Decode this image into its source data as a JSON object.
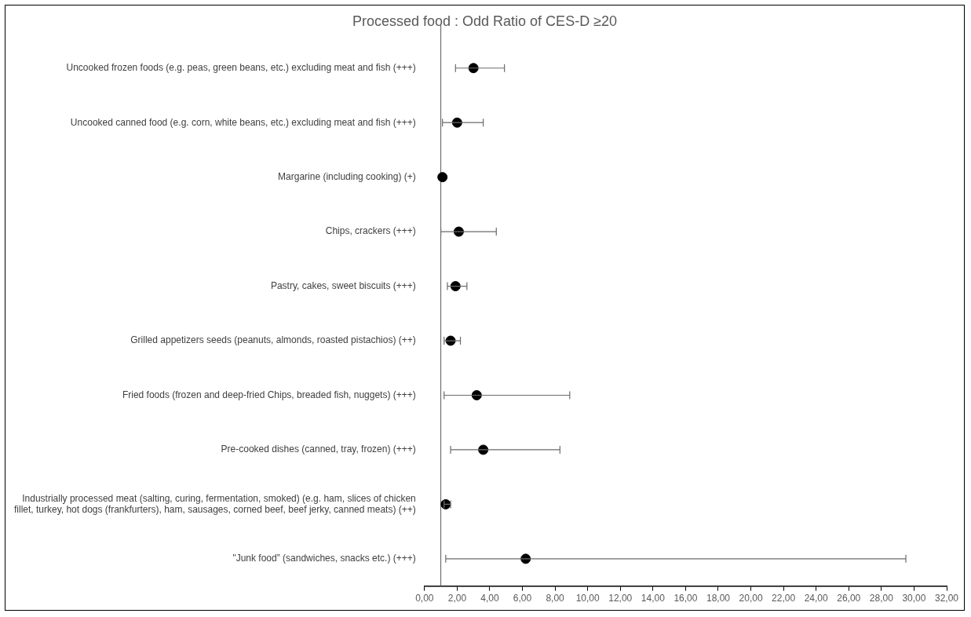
{
  "chart_data": {
    "type": "scatter",
    "orientation": "horizontal",
    "title": "Processed food : Odd Ratio of CES-D ≥20",
    "categories": [
      "Uncooked frozen foods (e.g. peas, green beans, etc.) excluding meat and fish (+++)",
      "Uncooked canned food (e.g. corn, white beans, etc.) excluding meat and fish (+++)",
      "Margarine (including cooking) (+)",
      "Chips, crackers (+++)",
      "Pastry, cakes, sweet biscuits (+++)",
      "Grilled appetizers seeds (peanuts, almonds, roasted pistachios) (++)",
      "Fried foods (frozen and deep-fried Chips, breaded fish, nuggets) (+++)",
      "Pre-cooked dishes (canned, tray, frozen) (+++)",
      "Industrially processed meat (salting, curing, fermentation, smoked) (e.g. ham, slices of chicken fillet, turkey, hot dogs (frankfurters), ham, sausages, corned beef, beef jerky, canned meats) (++)",
      "\"Junk food” (sandwiches, snacks etc.) (+++)"
    ],
    "values": [
      3.0,
      2.0,
      1.1,
      2.1,
      1.9,
      1.6,
      3.2,
      3.6,
      1.3,
      6.2
    ],
    "errors": [
      [
        1.9,
        4.9
      ],
      [
        1.1,
        3.6
      ],
      null,
      [
        1.0,
        4.4
      ],
      [
        1.4,
        2.6
      ],
      [
        1.2,
        2.2
      ],
      [
        1.2,
        8.9
      ],
      [
        1.6,
        8.3
      ],
      [
        1.2,
        1.6
      ],
      [
        1.3,
        29.5
      ]
    ],
    "color": "#000000",
    "marker": "circle",
    "xlim": [
      0,
      32
    ],
    "xticks": [
      {
        "value": 0,
        "label": "0,00"
      },
      {
        "value": 2,
        "label": "2,00"
      },
      {
        "value": 4,
        "label": "4,00"
      },
      {
        "value": 6,
        "label": "6,00"
      },
      {
        "value": 8,
        "label": "8,00"
      },
      {
        "value": 10,
        "label": "10,00"
      },
      {
        "value": 12,
        "label": "12,00"
      },
      {
        "value": 14,
        "label": "14,00"
      },
      {
        "value": 16,
        "label": "16,00"
      },
      {
        "value": 18,
        "label": "18,00"
      },
      {
        "value": 20,
        "label": "20,00"
      },
      {
        "value": 22,
        "label": "22,00"
      },
      {
        "value": 24,
        "label": "24,00"
      },
      {
        "value": 26,
        "label": "26,00"
      },
      {
        "value": 28,
        "label": "28,00"
      },
      {
        "value": 30,
        "label": "30,00"
      },
      {
        "value": 32,
        "label": "32,00"
      }
    ],
    "ref_lines": [
      {
        "axis": "x",
        "value": 1,
        "color": "#595959"
      }
    ]
  }
}
